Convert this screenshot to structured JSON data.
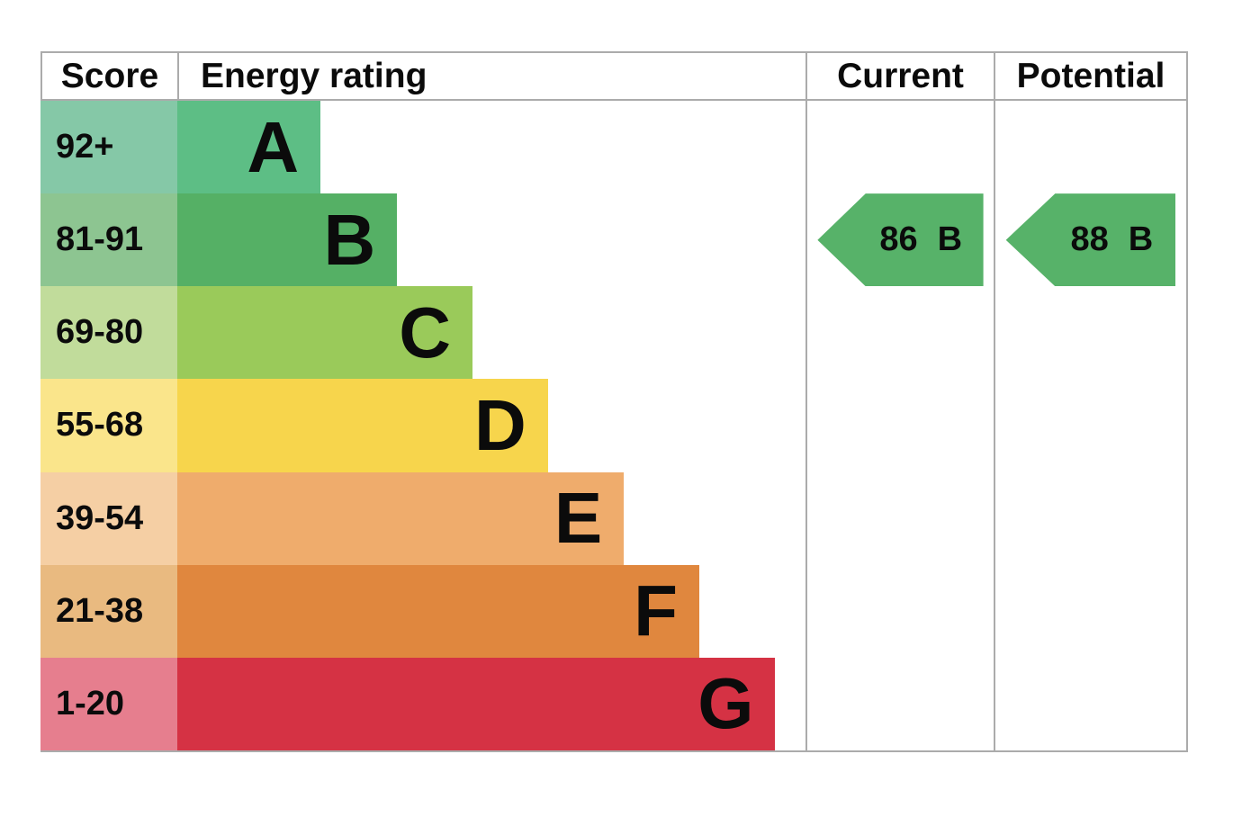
{
  "header": {
    "score": "Score",
    "energy_rating": "Energy rating",
    "current": "Current",
    "potential": "Potential"
  },
  "bands": [
    {
      "letter": "A",
      "score_range": "92+",
      "bar_color": "#5dbe85",
      "cell_color": "#85c8a7",
      "width_pct": 22.8
    },
    {
      "letter": "B",
      "score_range": "81-91",
      "bar_color": "#55b065",
      "cell_color": "#8dc591",
      "width_pct": 35.0
    },
    {
      "letter": "C",
      "score_range": "69-80",
      "bar_color": "#9aca5a",
      "cell_color": "#c1dc9b",
      "width_pct": 47.0
    },
    {
      "letter": "D",
      "score_range": "55-68",
      "bar_color": "#f7d54c",
      "cell_color": "#fae58b",
      "width_pct": 59.0
    },
    {
      "letter": "E",
      "score_range": "39-54",
      "bar_color": "#efac6c",
      "cell_color": "#f5cfa4",
      "width_pct": 71.1
    },
    {
      "letter": "F",
      "score_range": "21-38",
      "bar_color": "#e0873e",
      "cell_color": "#e9ba80",
      "width_pct": 83.1
    },
    {
      "letter": "G",
      "score_range": "1-20",
      "bar_color": "#d53244",
      "cell_color": "#e67e8e",
      "width_pct": 95.2
    }
  ],
  "current": {
    "score": "86",
    "rating": "B",
    "band_index": 1,
    "arrow_color": "#57b269"
  },
  "potential": {
    "score": "88",
    "rating": "B",
    "band_index": 1,
    "arrow_color": "#57b269"
  },
  "colors": {
    "border": "#ababab",
    "text": "#0b0b0b",
    "background": "#ffffff"
  },
  "chart_data": {
    "type": "bar",
    "title": "EPC energy efficiency rating chart",
    "columns": [
      "Score",
      "Energy rating",
      "Current",
      "Potential"
    ],
    "categories": [
      "A",
      "B",
      "C",
      "D",
      "E",
      "F",
      "G"
    ],
    "score_ranges": [
      "92+",
      "81-91",
      "69-80",
      "55-68",
      "39-54",
      "21-38",
      "1-20"
    ],
    "band_colors": [
      "#5dbe85",
      "#55b065",
      "#9aca5a",
      "#f7d54c",
      "#efac6c",
      "#e0873e",
      "#d53244"
    ],
    "bar_relative_widths_pct": [
      22.8,
      35.0,
      47.0,
      59.0,
      71.1,
      83.1,
      95.2
    ],
    "current": {
      "score": 86,
      "rating": "B"
    },
    "potential": {
      "score": 88,
      "rating": "B"
    },
    "legend_position": "none",
    "grid": false
  }
}
